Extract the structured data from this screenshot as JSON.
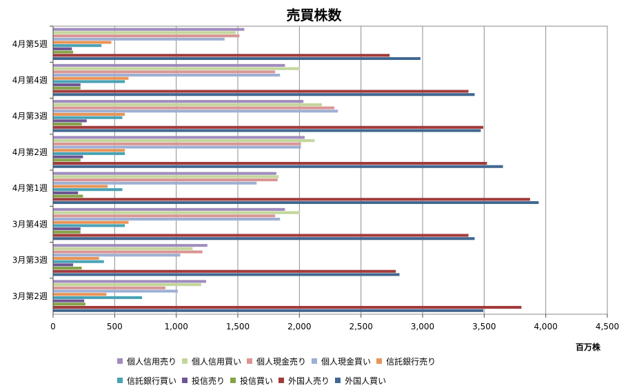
{
  "chart_data": {
    "type": "bar",
    "orientation": "horizontal",
    "title": "売買株数",
    "unit_label": "百万株",
    "xlim": [
      0,
      4500
    ],
    "x_ticks": [
      0,
      500,
      1000,
      1500,
      2000,
      2500,
      3000,
      3500,
      4000,
      4500
    ],
    "x_tick_labels": [
      "0",
      "500",
      "1,000",
      "1,500",
      "2,000",
      "2,500",
      "3,000",
      "3,500",
      "4,000",
      "4,500"
    ],
    "grid": true,
    "legend_position": "bottom",
    "categories": [
      "3月第2週",
      "3月第3週",
      "3月第4週",
      "4月第1週",
      "4月第2週",
      "4月第3週",
      "4月第4週",
      "4月第5週"
    ],
    "series": [
      {
        "name": "個人信用売り",
        "color": "#a08cbe",
        "values": [
          1240,
          1250,
          1880,
          1810,
          2040,
          2030,
          1880,
          1550
        ]
      },
      {
        "name": "個人信用買い",
        "color": "#c3d69b",
        "values": [
          1200,
          1130,
          2000,
          1830,
          2120,
          2180,
          2000,
          1480
        ]
      },
      {
        "name": "個人現金売り",
        "color": "#d99694",
        "values": [
          910,
          1210,
          1800,
          1820,
          2010,
          2280,
          1800,
          1510
        ]
      },
      {
        "name": "個人現金買い",
        "color": "#9fafd3",
        "values": [
          1010,
          1030,
          1840,
          1650,
          2010,
          2310,
          1840,
          1390
        ]
      },
      {
        "name": "信託銀行売り",
        "color": "#e89456",
        "values": [
          430,
          370,
          610,
          440,
          580,
          580,
          610,
          470
        ]
      },
      {
        "name": "信託銀行買い",
        "color": "#4aa3b5",
        "values": [
          720,
          410,
          580,
          560,
          580,
          560,
          580,
          390
        ]
      },
      {
        "name": "投信売り",
        "color": "#6e5593",
        "values": [
          250,
          160,
          220,
          200,
          240,
          270,
          220,
          150
        ]
      },
      {
        "name": "投信買い",
        "color": "#84a448",
        "values": [
          260,
          230,
          220,
          240,
          220,
          230,
          220,
          160
        ]
      },
      {
        "name": "外国人売り",
        "color": "#a23b3b",
        "values": [
          3800,
          2780,
          3370,
          3870,
          3520,
          3490,
          3370,
          2730
        ]
      },
      {
        "name": "外国人買い",
        "color": "#426891",
        "values": [
          3490,
          2810,
          3420,
          3940,
          3650,
          3470,
          3420,
          2980
        ]
      }
    ]
  }
}
